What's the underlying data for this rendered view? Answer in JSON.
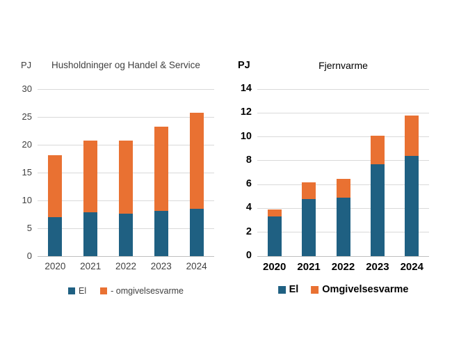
{
  "page": {
    "background": "#ffffff",
    "unit": "PJ"
  },
  "colors": {
    "el": "#1F6082",
    "omgivelsesvarme": "#E97132",
    "gridline": "#D9D9D9",
    "axis_line": "#BFBFBF",
    "left_chart_text": "#404040",
    "right_chart_text": "#000000"
  },
  "chart_data": [
    {
      "type": "bar",
      "stacked": true,
      "title": "Husholdninger og Handel & Service",
      "unit": "PJ",
      "categories": [
        "2020",
        "2021",
        "2022",
        "2023",
        "2024"
      ],
      "series": [
        {
          "name": "El",
          "color": "#1F6082",
          "values": [
            7.0,
            7.9,
            7.6,
            8.1,
            8.5
          ]
        },
        {
          "name": "- omgivelsesvarme",
          "color": "#E97132",
          "values": [
            11.1,
            12.8,
            13.1,
            15.2,
            17.2
          ]
        }
      ],
      "totals": [
        18.1,
        20.7,
        20.7,
        23.3,
        25.7
      ],
      "ylim": [
        0,
        30
      ],
      "yticks": [
        0,
        5,
        10,
        15,
        20,
        25,
        30
      ],
      "grid": true,
      "legend_position": "bottom",
      "legend": [
        "El",
        "- omgivelsesvarme"
      ]
    },
    {
      "type": "bar",
      "stacked": true,
      "title": "Fjernvarme",
      "unit": "PJ",
      "categories": [
        "2020",
        "2021",
        "2022",
        "2023",
        "2024"
      ],
      "series": [
        {
          "name": "El",
          "color": "#1F6082",
          "values": [
            3.3,
            4.8,
            4.9,
            7.7,
            8.4
          ]
        },
        {
          "name": "Omgivelsesvarme",
          "color": "#E97132",
          "values": [
            0.6,
            1.4,
            1.6,
            2.4,
            3.4
          ]
        }
      ],
      "totals": [
        3.9,
        6.2,
        6.5,
        10.1,
        11.8
      ],
      "ylim": [
        0,
        14
      ],
      "yticks": [
        0,
        2,
        4,
        6,
        8,
        10,
        12,
        14
      ],
      "grid": true,
      "legend_position": "bottom",
      "legend": [
        "El",
        "Omgivelsesvarme"
      ]
    }
  ]
}
